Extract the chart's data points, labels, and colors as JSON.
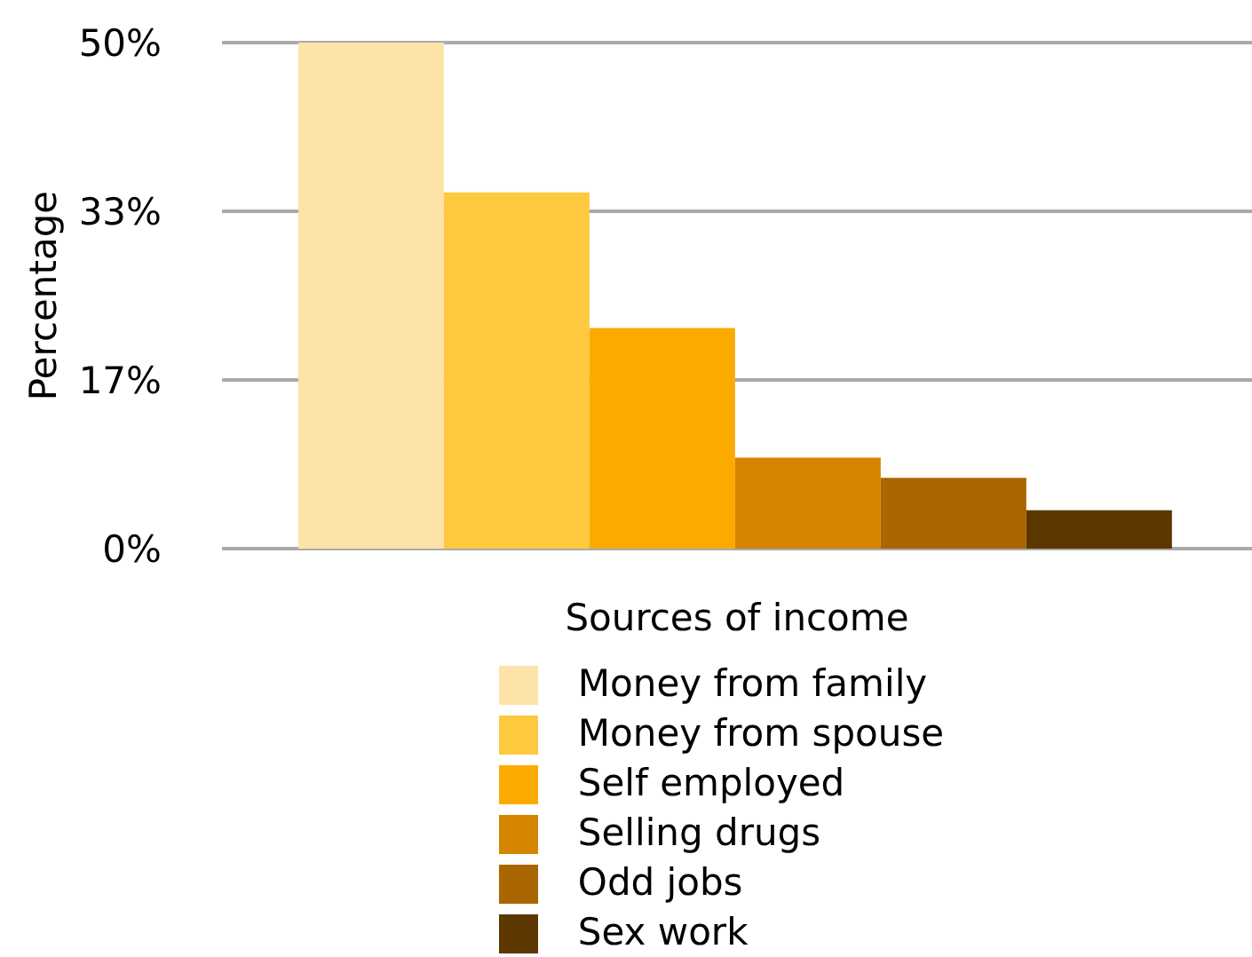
{
  "chart_data": {
    "type": "bar",
    "xlabel": "Sources of income",
    "ylabel": "Percentage",
    "categories": [
      null
    ],
    "series": [
      {
        "name": "Money from family",
        "color": "#fde3a7",
        "values": [
          50
        ]
      },
      {
        "name": "Money from spouse",
        "color": "#fec93f",
        "values": [
          35.2
        ]
      },
      {
        "name": "Self employed",
        "color": "#fdaa00",
        "values": [
          21.8
        ]
      },
      {
        "name": "Selling drugs",
        "color": "#d58500",
        "values": [
          9
        ]
      },
      {
        "name": "Odd jobs",
        "color": "#aa6600",
        "values": [
          7
        ]
      },
      {
        "name": "Sex work",
        "color": "#5c3800",
        "values": [
          3.8
        ]
      }
    ],
    "ylim": [
      0,
      50
    ],
    "yticks": [
      {
        "value": 0,
        "label": "0%"
      },
      {
        "value": 16.67,
        "label": "17%"
      },
      {
        "value": 33.33,
        "label": "33%"
      },
      {
        "value": 50,
        "label": "50%"
      }
    ],
    "grid": "y",
    "legend": "bottom"
  }
}
